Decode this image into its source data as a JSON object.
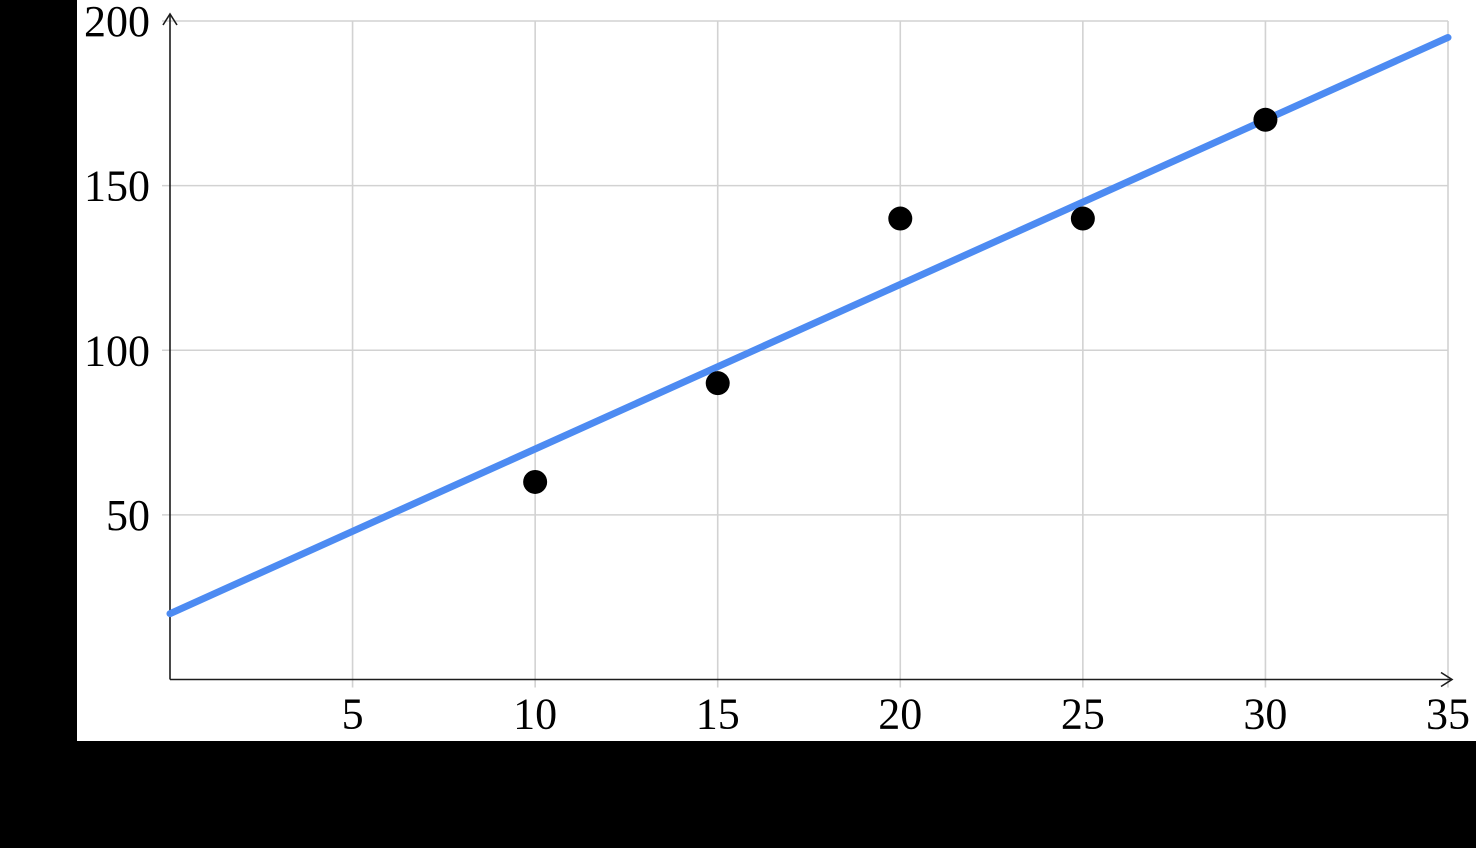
{
  "figure": {
    "background_color": "#000000",
    "panel_color": "#ffffff"
  },
  "chart_data": {
    "type": "scatter",
    "points": [
      {
        "x": 10,
        "y": 60
      },
      {
        "x": 15,
        "y": 90
      },
      {
        "x": 20,
        "y": 140
      },
      {
        "x": 25,
        "y": 140
      },
      {
        "x": 30,
        "y": 170
      }
    ],
    "trend_line": {
      "start": {
        "x": 0,
        "y": 20
      },
      "end": {
        "x": 35,
        "y": 195
      },
      "slope": 5,
      "intercept": 20
    },
    "xlim": [
      0,
      35
    ],
    "ylim": [
      0,
      200
    ],
    "xticks": [
      5,
      10,
      15,
      20,
      25,
      30,
      35
    ],
    "yticks": [
      50,
      100,
      150,
      200
    ],
    "grid": true,
    "legend_position": "none",
    "colors": {
      "trend_line": "#4d8bf2",
      "points": "#000000",
      "grid": "#d2d2d2",
      "axis": "#1c1c1c",
      "tick_label": "#000000"
    }
  }
}
